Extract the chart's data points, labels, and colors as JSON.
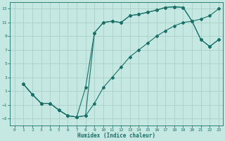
{
  "xlabel": "Humidex (Indice chaleur)",
  "xlim": [
    -0.5,
    23.5
  ],
  "ylim": [
    -4,
    14
  ],
  "xticks": [
    0,
    1,
    2,
    3,
    4,
    5,
    6,
    7,
    8,
    9,
    10,
    11,
    12,
    13,
    14,
    15,
    16,
    17,
    18,
    19,
    20,
    21,
    22,
    23
  ],
  "yticks": [
    -3,
    -1,
    1,
    3,
    5,
    7,
    9,
    11,
    13
  ],
  "bg_color": "#c5e8e2",
  "grid_color": "#a8cfc8",
  "line_color": "#1a7068",
  "line1_x": [
    1,
    2,
    3,
    4,
    5,
    6,
    7,
    8,
    9,
    10,
    11,
    12,
    13,
    14,
    15,
    16,
    17,
    18,
    19,
    20,
    21,
    22,
    23
  ],
  "line1_y": [
    2,
    0.5,
    -0.8,
    -0.8,
    -1.8,
    -2.6,
    -2.8,
    1.5,
    9.5,
    11,
    11.2,
    11,
    12,
    12.2,
    12.5,
    12.8,
    13.2,
    13.3,
    13.2,
    11.2,
    8.5,
    7.5,
    8.5
  ],
  "line2_x": [
    1,
    2,
    3,
    4,
    5,
    6,
    7,
    8,
    9,
    10,
    11,
    12,
    13,
    14,
    15,
    16,
    17,
    18,
    19,
    20,
    21,
    22,
    23
  ],
  "line2_y": [
    2,
    0.5,
    -0.8,
    -0.8,
    -1.8,
    -2.6,
    -2.8,
    -2.6,
    -0.8,
    1.5,
    3.0,
    4.5,
    6.0,
    7.0,
    8.0,
    9.0,
    9.8,
    10.5,
    11.0,
    11.2,
    11.5,
    12.0,
    13.0
  ],
  "line3_x": [
    1,
    2,
    3,
    4,
    5,
    6,
    7,
    8,
    9,
    10,
    11,
    12,
    13,
    14,
    15,
    16,
    17,
    18,
    19,
    20,
    21,
    22,
    23
  ],
  "line3_y": [
    2,
    0.5,
    -0.8,
    -0.8,
    -1.8,
    -2.6,
    -2.8,
    -2.6,
    9.5,
    11,
    11.2,
    11,
    12,
    12.2,
    12.5,
    12.8,
    13.2,
    13.3,
    13.2,
    11.2,
    8.5,
    7.5,
    8.5
  ]
}
